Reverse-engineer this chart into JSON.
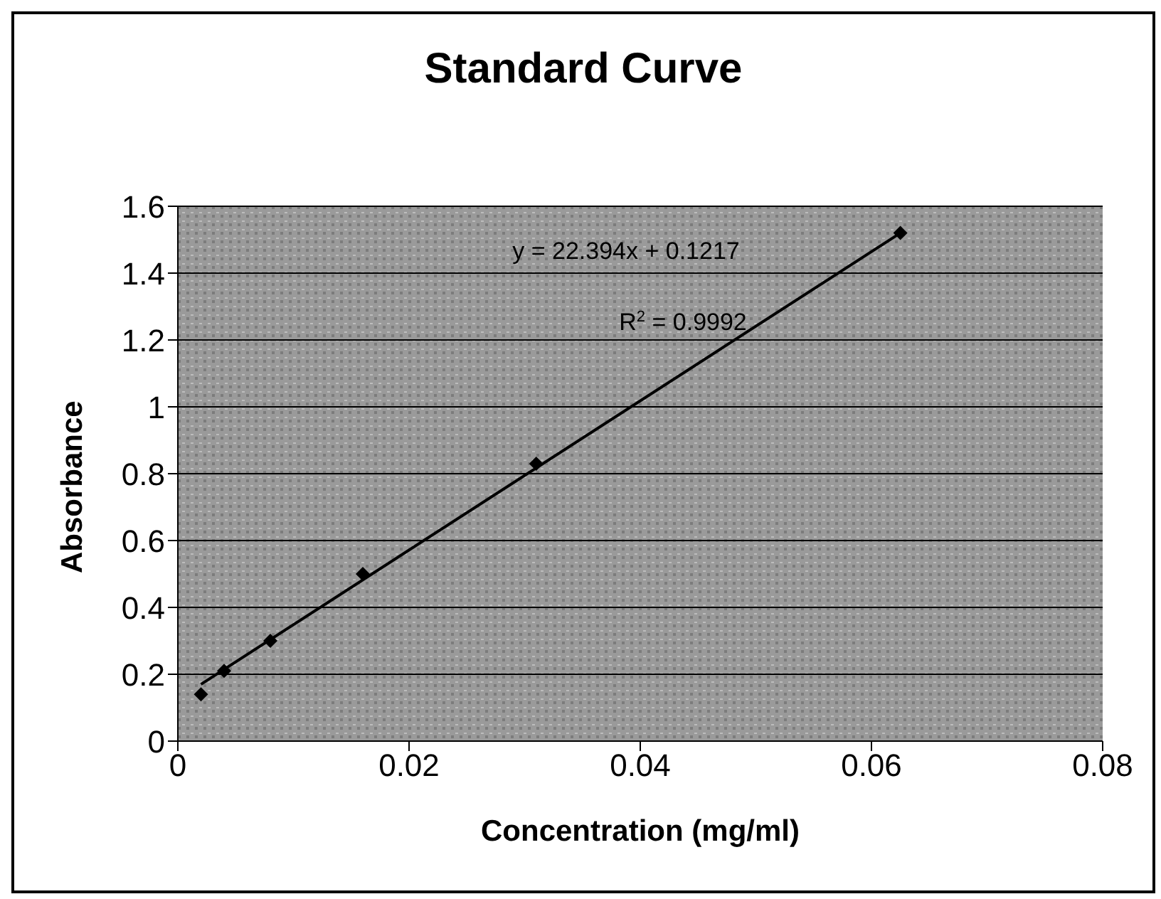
{
  "chart_data": {
    "type": "scatter",
    "title": "Standard Curve",
    "xlabel": "Concentration (mg/ml)",
    "ylabel": "Absorbance",
    "series": [
      {
        "color": "#000000",
        "x": [
          0.002,
          0.004,
          0.008,
          0.016,
          0.031,
          0.0625
        ],
        "values": [
          0.14,
          0.21,
          0.3,
          0.5,
          0.83,
          1.52
        ],
        "marker": "diamond"
      },
      {
        "type": "line",
        "color": "#000000",
        "x": [
          0.002,
          0.0625
        ],
        "values": [
          0.17,
          1.52
        ],
        "marker": "none"
      }
    ],
    "xlim": [
      0,
      0.08
    ],
    "xticks": [
      0,
      0.02,
      0.04,
      0.06,
      0.08
    ],
    "ylim": [
      0,
      1.6
    ],
    "yticks": [
      0,
      0.2,
      0.4,
      0.6,
      0.8,
      1,
      1.2,
      1.4,
      1.6
    ],
    "grid": "y",
    "legend": false,
    "annotations": [
      "y = 22.394x + 0.1217",
      "R$^{2}$ = 0.9992"
    ]
  }
}
